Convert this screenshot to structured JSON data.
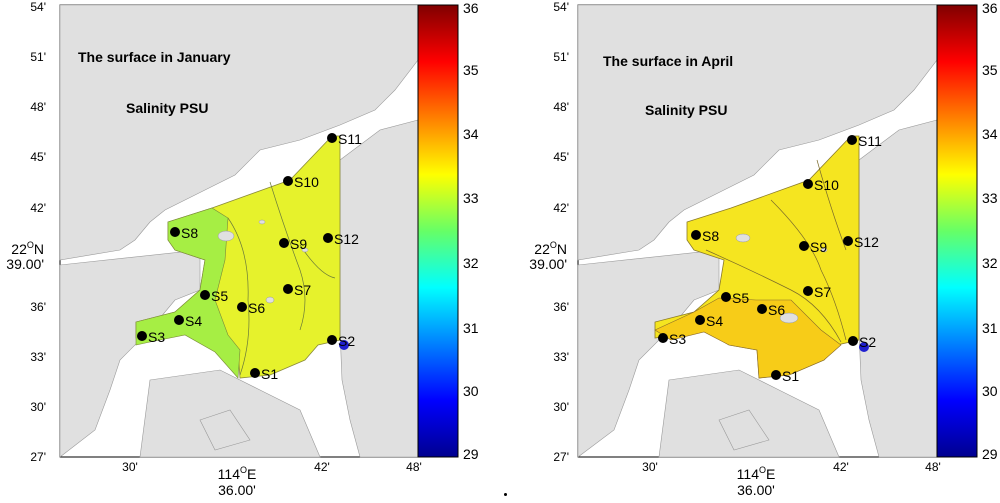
{
  "colorbar": {
    "ticks": [
      "36",
      "35",
      "34",
      "33",
      "32",
      "31",
      "30",
      "29"
    ]
  },
  "axes": {
    "y_ticks": [
      "54'",
      "51'",
      "48'",
      "45'",
      "42'",
      "39.00'",
      "36'",
      "33'",
      "30'",
      "27'"
    ],
    "y_degree": "22",
    "y_degree_suffix": "N",
    "x_ticks": [
      "30'",
      "36.00'",
      "42'",
      "48'"
    ],
    "x_degree": "114",
    "x_degree_suffix": "E"
  },
  "panels": [
    {
      "title": "The surface in January",
      "subtitle": "Salinity PSU",
      "stations": [
        "S1",
        "S2",
        "S3",
        "S4",
        "S5",
        "S6",
        "S7",
        "S8",
        "S9",
        "S10",
        "S11",
        "S12"
      ],
      "chart_data": {
        "type": "contour-map",
        "variable": "Salinity",
        "unit": "PSU",
        "colorbar_range": [
          29,
          36
        ],
        "dominant_value_range": [
          32.5,
          33.5
        ]
      }
    },
    {
      "title": "The surface in April",
      "subtitle": "Salinity PSU",
      "stations": [
        "S1",
        "S2",
        "S3",
        "S4",
        "S5",
        "S6",
        "S7",
        "S8",
        "S9",
        "S10",
        "S11",
        "S12"
      ],
      "chart_data": {
        "type": "contour-map",
        "variable": "Salinity",
        "unit": "PSU",
        "colorbar_range": [
          29,
          36
        ],
        "dominant_value_range": [
          33.2,
          33.9
        ]
      }
    }
  ],
  "colors": {
    "land": "#e0e0e0",
    "jan_main": "#e6f22c",
    "jan_west": "#a6ee44",
    "apr_main": "#f5e520",
    "apr_south": "#f7cc18",
    "station": "#000000",
    "freshwater_point": "#1f1fd0"
  }
}
